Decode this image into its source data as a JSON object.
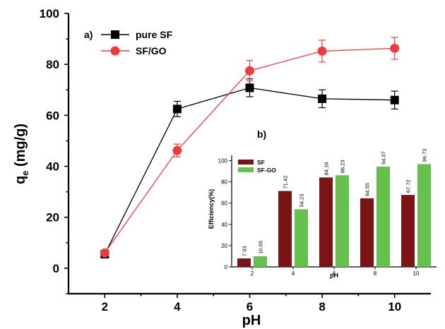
{
  "chart_data": [
    {
      "id": "main",
      "panel_label": "a)",
      "type": "line",
      "xlabel": "pH",
      "ylabel_main": "q",
      "ylabel_sub": "e",
      "ylabel_unit": " (mg/g)",
      "xlim": [
        1,
        11
      ],
      "ylim": [
        -10,
        100
      ],
      "xticks": [
        2,
        4,
        6,
        8,
        10
      ],
      "yticks": [
        0,
        20,
        40,
        60,
        80,
        100
      ],
      "legend_position": "top-left",
      "series": [
        {
          "name": "pure SF",
          "color": "#000000",
          "marker": "square",
          "x": [
            2,
            4,
            6,
            8,
            10
          ],
          "y": [
            5.5,
            62.5,
            70.8,
            66.5,
            66.0
          ],
          "err": [
            0.5,
            3.0,
            3.5,
            3.5,
            3.5
          ]
        },
        {
          "name": "SF/GO",
          "color": "#ee3b3b",
          "marker": "circle",
          "x": [
            2,
            4,
            6,
            8,
            10
          ],
          "y": [
            6.0,
            46.2,
            77.5,
            85.2,
            86.3
          ],
          "err": [
            0.5,
            2.5,
            4.0,
            4.3,
            4.3
          ]
        }
      ]
    },
    {
      "id": "inset",
      "panel_label": "b)",
      "type": "bar",
      "xlabel": "pH",
      "ylabel": "Efficiency(%)",
      "categories": [
        "2",
        "4",
        "6",
        "8",
        "10"
      ],
      "ylim": [
        0,
        105
      ],
      "yticks": [
        0,
        20,
        40,
        60,
        80,
        100
      ],
      "legend_position": "top-left",
      "series": [
        {
          "name": "SF",
          "color": "#7b1416",
          "values": [
            7.93,
            71.42,
            84.16,
            64.55,
            67.72
          ],
          "labels": [
            "7.93",
            "71.42",
            "84.16",
            "64.55",
            "67.72"
          ]
        },
        {
          "name": "SF-GO",
          "color": "#66c04d",
          "values": [
            10.05,
            54.23,
            86.23,
            94.37,
            96.73
          ],
          "labels": [
            "10.05",
            "54.23",
            "86.23",
            "94.37",
            "96.73"
          ]
        }
      ]
    }
  ]
}
